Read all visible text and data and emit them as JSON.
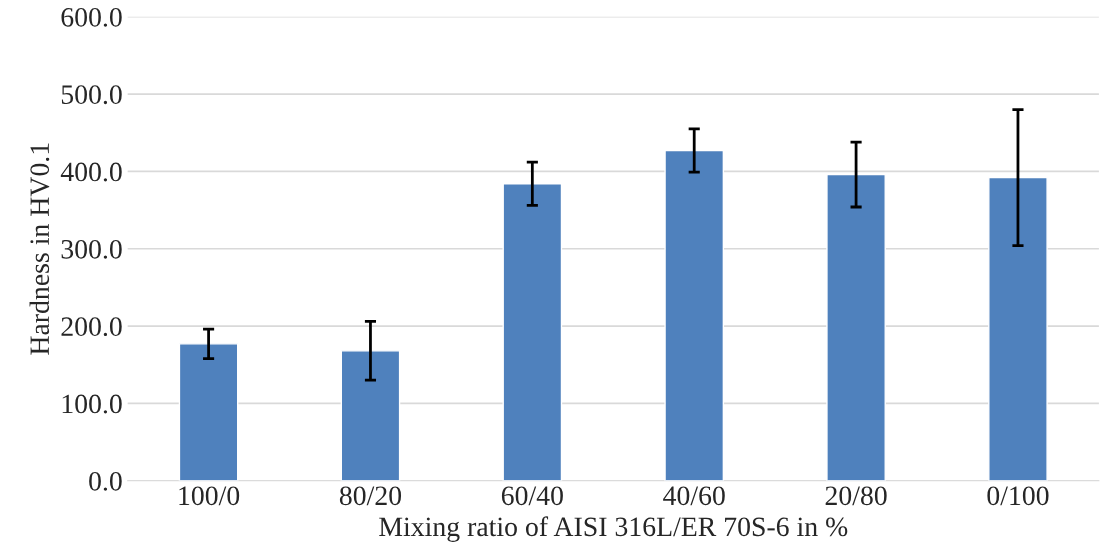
{
  "chart_data": {
    "type": "bar",
    "xlabel": "Mixing ratio of AISI 316L/ER 70S-6 in %",
    "ylabel": "Hardness in HV0.1",
    "categories": [
      "100/0",
      "80/20",
      "60/40",
      "40/60",
      "20/80",
      "0/100"
    ],
    "values": [
      177,
      168,
      384,
      427,
      396,
      392
    ],
    "errors": [
      19,
      38,
      28,
      28,
      42,
      88
    ],
    "color": "#4f81bd",
    "ylim": [
      0,
      600
    ],
    "yticks": [
      {
        "value": 0,
        "label": "0.0"
      },
      {
        "value": 100,
        "label": "100.0"
      },
      {
        "value": 200,
        "label": "200.0"
      },
      {
        "value": 300,
        "label": "300.0"
      },
      {
        "value": 400,
        "label": "400.0"
      },
      {
        "value": 500,
        "label": "500.0"
      },
      {
        "value": 600,
        "label": "600.0"
      }
    ],
    "grid": "y",
    "legend": false
  }
}
